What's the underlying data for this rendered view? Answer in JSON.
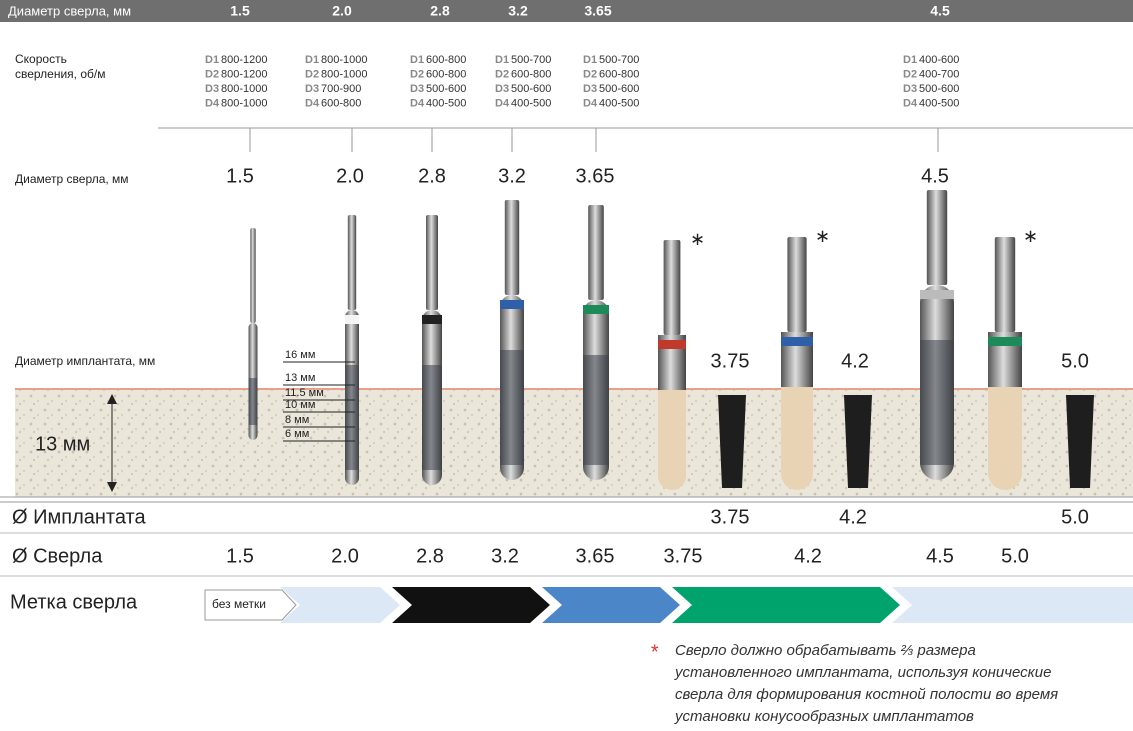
{
  "header": {
    "label": "Диаметр сверла, мм",
    "values": [
      "1.5",
      "2.0",
      "2.8",
      "3.2",
      "3.65",
      "4.5"
    ]
  },
  "speed": {
    "label_lines": [
      "Скорость",
      "сверления, об/м"
    ],
    "columns": [
      [
        [
          "D1",
          "800-1200"
        ],
        [
          "D2",
          "800-1200"
        ],
        [
          "D3",
          "800-1000"
        ],
        [
          "D4",
          "800-1000"
        ]
      ],
      [
        [
          "D1",
          "800-1000"
        ],
        [
          "D2",
          "800-1000"
        ],
        [
          "D3",
          "700-900"
        ],
        [
          "D4",
          "600-800"
        ]
      ],
      [
        [
          "D1",
          "600-800"
        ],
        [
          "D2",
          "600-800"
        ],
        [
          "D3",
          "500-600"
        ],
        [
          "D4",
          "400-500"
        ]
      ],
      [
        [
          "D1",
          "500-700"
        ],
        [
          "D2",
          "600-800"
        ],
        [
          "D3",
          "500-600"
        ],
        [
          "D4",
          "400-500"
        ]
      ],
      [
        [
          "D1",
          "500-700"
        ],
        [
          "D2",
          "600-800"
        ],
        [
          "D3",
          "500-600"
        ],
        [
          "D4",
          "400-500"
        ]
      ],
      [
        [
          "D1",
          "400-600"
        ],
        [
          "D2",
          "400-700"
        ],
        [
          "D3",
          "500-600"
        ],
        [
          "D4",
          "400-500"
        ]
      ]
    ]
  },
  "drill_diameters": {
    "label": "Диаметр сверла, мм",
    "values": [
      "1.5",
      "2.0",
      "2.8",
      "3.2",
      "3.65",
      "4.5"
    ]
  },
  "implant_diameters": {
    "label": "Диаметр имплантата, мм",
    "values": [
      "3.75",
      "4.2",
      "5.0"
    ]
  },
  "depth_marks": [
    "16 мм",
    "13 мм",
    "11.5 мм",
    "10 мм",
    "8 мм",
    "6 мм"
  ],
  "bone_depth": "13 мм",
  "table": {
    "implant_row": {
      "label": "Ø Имплантата",
      "values": [
        "3.75",
        "4.2",
        "5.0"
      ]
    },
    "drill_row": {
      "label": "Ø Сверла",
      "values": [
        "1.5",
        "2.0",
        "2.8",
        "3.2",
        "3.65",
        "3.75",
        "4.2",
        "4.5",
        "5.0"
      ]
    }
  },
  "marker": {
    "label": "Метка сверла",
    "none": "без метки"
  },
  "footnote": {
    "symbol": "*",
    "lines": [
      "Сверло должно обрабатывать ⅔ размера",
      "установленного имплантата, используя конические",
      "сверла для формирования костной полости во время",
      "установки конусообразных имплантатов"
    ]
  }
}
